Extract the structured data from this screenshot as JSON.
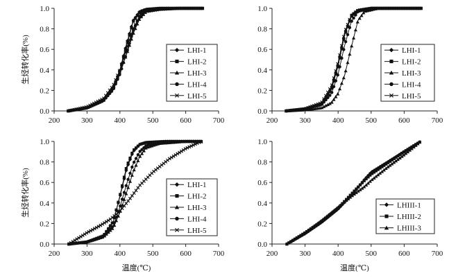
{
  "chart_data": [
    {
      "type": "line",
      "ylabel": "生烃转化率(%)",
      "xlabel": "",
      "xlim": [
        200,
        700
      ],
      "ylim": [
        0,
        1.0
      ],
      "xticks": [
        200,
        300,
        400,
        500,
        600,
        700
      ],
      "yticks": [
        0.0,
        0.2,
        0.4,
        0.6,
        0.8,
        1.0
      ],
      "legend_position": "lower-right",
      "series": [
        {
          "name": "LHI-1",
          "marker": "diamond",
          "points": [
            [
              243,
              0.0
            ],
            [
              300,
              0.03
            ],
            [
              350,
              0.1
            ],
            [
              380,
              0.22
            ],
            [
              400,
              0.4
            ],
            [
              420,
              0.65
            ],
            [
              440,
              0.88
            ],
            [
              460,
              0.97
            ],
            [
              480,
              0.99
            ],
            [
              520,
              1.0
            ],
            [
              580,
              1.0
            ],
            [
              655,
              1.0
            ]
          ]
        },
        {
          "name": "LHI-2",
          "marker": "square",
          "points": [
            [
              243,
              0.0
            ],
            [
              300,
              0.03
            ],
            [
              350,
              0.1
            ],
            [
              380,
              0.22
            ],
            [
              400,
              0.39
            ],
            [
              420,
              0.63
            ],
            [
              440,
              0.87
            ],
            [
              460,
              0.96
            ],
            [
              480,
              0.99
            ],
            [
              520,
              1.0
            ],
            [
              580,
              1.0
            ],
            [
              655,
              1.0
            ]
          ]
        },
        {
          "name": "LHI-3",
          "marker": "triangle",
          "points": [
            [
              243,
              0.0
            ],
            [
              300,
              0.03
            ],
            [
              350,
              0.11
            ],
            [
              380,
              0.24
            ],
            [
              400,
              0.38
            ],
            [
              420,
              0.55
            ],
            [
              440,
              0.75
            ],
            [
              460,
              0.9
            ],
            [
              480,
              0.97
            ],
            [
              520,
              0.99
            ],
            [
              580,
              1.0
            ],
            [
              655,
              1.0
            ]
          ]
        },
        {
          "name": "LHI-4",
          "marker": "circle",
          "points": [
            [
              243,
              0.0
            ],
            [
              300,
              0.03
            ],
            [
              350,
              0.1
            ],
            [
              380,
              0.21
            ],
            [
              400,
              0.36
            ],
            [
              420,
              0.56
            ],
            [
              440,
              0.78
            ],
            [
              460,
              0.93
            ],
            [
              480,
              0.98
            ],
            [
              520,
              1.0
            ],
            [
              580,
              1.0
            ],
            [
              655,
              1.0
            ]
          ]
        },
        {
          "name": "LHI-5",
          "marker": "cross",
          "points": [
            [
              243,
              0.0
            ],
            [
              300,
              0.04
            ],
            [
              350,
              0.12
            ],
            [
              380,
              0.25
            ],
            [
              400,
              0.4
            ],
            [
              420,
              0.6
            ],
            [
              440,
              0.8
            ],
            [
              460,
              0.92
            ],
            [
              480,
              0.97
            ],
            [
              520,
              0.99
            ],
            [
              580,
              1.0
            ],
            [
              655,
              1.0
            ]
          ]
        }
      ]
    },
    {
      "type": "line",
      "ylabel": "",
      "xlabel": "",
      "xlim": [
        200,
        700
      ],
      "ylim": [
        0,
        1.0
      ],
      "xticks": [
        200,
        300,
        400,
        500,
        600,
        700
      ],
      "yticks": [
        0.0,
        0.2,
        0.4,
        0.6,
        0.8,
        1.0
      ],
      "legend_position": "lower-right",
      "series": [
        {
          "name": "LHI-1",
          "marker": "diamond",
          "points": [
            [
              243,
              0.0
            ],
            [
              300,
              0.02
            ],
            [
              350,
              0.07
            ],
            [
              380,
              0.22
            ],
            [
              400,
              0.45
            ],
            [
              420,
              0.75
            ],
            [
              440,
              0.93
            ],
            [
              460,
              0.98
            ],
            [
              500,
              1.0
            ],
            [
              580,
              1.0
            ],
            [
              655,
              1.0
            ]
          ]
        },
        {
          "name": "LHI-2",
          "marker": "square",
          "points": [
            [
              243,
              0.0
            ],
            [
              300,
              0.02
            ],
            [
              350,
              0.07
            ],
            [
              380,
              0.21
            ],
            [
              400,
              0.44
            ],
            [
              420,
              0.74
            ],
            [
              440,
              0.92
            ],
            [
              460,
              0.98
            ],
            [
              500,
              1.0
            ],
            [
              580,
              1.0
            ],
            [
              655,
              1.0
            ]
          ]
        },
        {
          "name": "LHI-3",
          "marker": "triangle",
          "points": [
            [
              243,
              0.0
            ],
            [
              300,
              0.01
            ],
            [
              350,
              0.03
            ],
            [
              380,
              0.08
            ],
            [
              400,
              0.17
            ],
            [
              420,
              0.35
            ],
            [
              440,
              0.62
            ],
            [
              460,
              0.88
            ],
            [
              480,
              0.97
            ],
            [
              520,
              1.0
            ],
            [
              580,
              1.0
            ],
            [
              655,
              1.0
            ]
          ]
        },
        {
          "name": "LHI-4",
          "marker": "circle",
          "points": [
            [
              243,
              0.0
            ],
            [
              300,
              0.02
            ],
            [
              350,
              0.06
            ],
            [
              380,
              0.17
            ],
            [
              400,
              0.36
            ],
            [
              420,
              0.64
            ],
            [
              440,
              0.87
            ],
            [
              460,
              0.97
            ],
            [
              500,
              1.0
            ],
            [
              580,
              1.0
            ],
            [
              655,
              1.0
            ]
          ]
        },
        {
          "name": "LHI-5",
          "marker": "cross",
          "points": [
            [
              243,
              0.0
            ],
            [
              300,
              0.02
            ],
            [
              350,
              0.08
            ],
            [
              380,
              0.24
            ],
            [
              400,
              0.47
            ],
            [
              420,
              0.77
            ],
            [
              440,
              0.93
            ],
            [
              460,
              0.98
            ],
            [
              500,
              1.0
            ],
            [
              580,
              1.0
            ],
            [
              655,
              1.0
            ]
          ]
        }
      ]
    },
    {
      "type": "line",
      "ylabel": "生烃转化率(%)",
      "xlabel": "温度(℃)",
      "xlim": [
        200,
        700
      ],
      "ylim": [
        0,
        1.0
      ],
      "xticks": [
        200,
        300,
        400,
        500,
        600,
        700
      ],
      "yticks": [
        0.0,
        0.2,
        0.4,
        0.6,
        0.8,
        1.0
      ],
      "legend_position": "lower-right",
      "series": [
        {
          "name": "LHI-1",
          "marker": "diamond",
          "points": [
            [
              245,
              0.0
            ],
            [
              300,
              0.02
            ],
            [
              350,
              0.08
            ],
            [
              380,
              0.22
            ],
            [
              400,
              0.46
            ],
            [
              420,
              0.73
            ],
            [
              440,
              0.9
            ],
            [
              460,
              0.97
            ],
            [
              480,
              0.99
            ],
            [
              540,
              1.0
            ],
            [
              600,
              1.0
            ],
            [
              650,
              1.0
            ]
          ]
        },
        {
          "name": "LHI-2",
          "marker": "square",
          "points": [
            [
              245,
              0.0
            ],
            [
              300,
              0.02
            ],
            [
              350,
              0.08
            ],
            [
              380,
              0.22
            ],
            [
              400,
              0.47
            ],
            [
              420,
              0.75
            ],
            [
              440,
              0.91
            ],
            [
              460,
              0.97
            ],
            [
              480,
              0.99
            ],
            [
              540,
              1.0
            ],
            [
              600,
              1.0
            ],
            [
              650,
              1.0
            ]
          ]
        },
        {
          "name": "LHI-3",
          "marker": "triangle",
          "points": [
            [
              245,
              0.0
            ],
            [
              300,
              0.02
            ],
            [
              350,
              0.07
            ],
            [
              380,
              0.16
            ],
            [
              400,
              0.31
            ],
            [
              420,
              0.5
            ],
            [
              440,
              0.7
            ],
            [
              460,
              0.85
            ],
            [
              480,
              0.94
            ],
            [
              520,
              0.98
            ],
            [
              600,
              1.0
            ],
            [
              650,
              1.0
            ]
          ]
        },
        {
          "name": "LHI-4",
          "marker": "circle",
          "points": [
            [
              245,
              0.0
            ],
            [
              300,
              0.02
            ],
            [
              350,
              0.07
            ],
            [
              380,
              0.18
            ],
            [
              400,
              0.36
            ],
            [
              420,
              0.58
            ],
            [
              440,
              0.78
            ],
            [
              460,
              0.9
            ],
            [
              480,
              0.96
            ],
            [
              520,
              0.99
            ],
            [
              600,
              1.0
            ],
            [
              650,
              1.0
            ]
          ]
        },
        {
          "name": "LHI-5",
          "marker": "cross",
          "points": [
            [
              245,
              0.0
            ],
            [
              270,
              0.05
            ],
            [
              300,
              0.11
            ],
            [
              340,
              0.18
            ],
            [
              370,
              0.24
            ],
            [
              400,
              0.32
            ],
            [
              430,
              0.44
            ],
            [
              460,
              0.57
            ],
            [
              500,
              0.7
            ],
            [
              550,
              0.83
            ],
            [
              600,
              0.93
            ],
            [
              640,
              0.99
            ],
            [
              650,
              1.0
            ]
          ]
        }
      ]
    },
    {
      "type": "line",
      "ylabel": "",
      "xlabel": "温度(℃)",
      "xlim": [
        200,
        700
      ],
      "ylim": [
        0,
        1.0
      ],
      "xticks": [
        200,
        300,
        400,
        500,
        600,
        700
      ],
      "yticks": [
        0.0,
        0.2,
        0.4,
        0.6,
        0.8,
        1.0
      ],
      "legend_position": "lower-right",
      "series": [
        {
          "name": "LHIII-1",
          "marker": "diamond",
          "points": [
            [
              245,
              0.0
            ],
            [
              300,
              0.1
            ],
            [
              350,
              0.21
            ],
            [
              400,
              0.34
            ],
            [
              450,
              0.51
            ],
            [
              480,
              0.63
            ],
            [
              500,
              0.7
            ],
            [
              550,
              0.8
            ],
            [
              600,
              0.9
            ],
            [
              650,
              1.0
            ]
          ]
        },
        {
          "name": "LHIII-2",
          "marker": "square",
          "points": [
            [
              245,
              0.0
            ],
            [
              300,
              0.11
            ],
            [
              350,
              0.22
            ],
            [
              400,
              0.35
            ],
            [
              450,
              0.52
            ],
            [
              480,
              0.62
            ],
            [
              500,
              0.68
            ],
            [
              550,
              0.79
            ],
            [
              600,
              0.9
            ],
            [
              650,
              1.0
            ]
          ]
        },
        {
          "name": "LHIII-3",
          "marker": "triangle",
          "points": [
            [
              245,
              0.0
            ],
            [
              300,
              0.11
            ],
            [
              350,
              0.23
            ],
            [
              400,
              0.36
            ],
            [
              450,
              0.49
            ],
            [
              480,
              0.56
            ],
            [
              500,
              0.62
            ],
            [
              550,
              0.75
            ],
            [
              600,
              0.87
            ],
            [
              650,
              1.0
            ]
          ]
        }
      ]
    }
  ]
}
